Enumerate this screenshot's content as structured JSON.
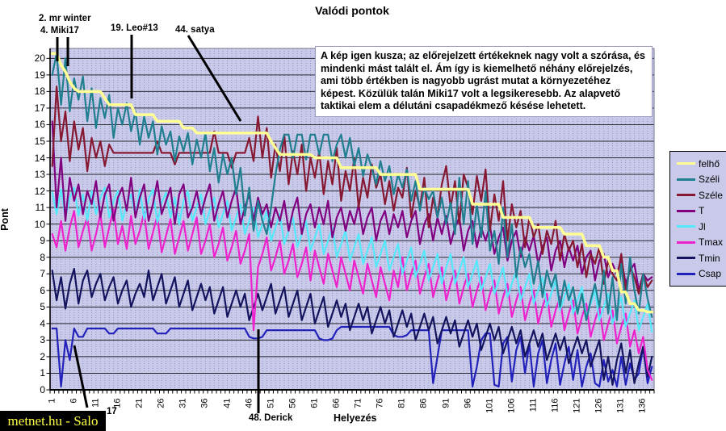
{
  "title": "Valódi pontok",
  "watermark": "metnet.hu - Salo",
  "annotation_box": {
    "text": "A kép igen kusza; az előrejelzett értékeknek nagy volt a szórása, és mindenki mást talált el. Ám így is kiemelhető néhány előrejelzés, ami több értékben is nagyobb ugrást mutat a környezetéhez képest. Közülük talán Miki17 volt a legsikeresebb. Az alapvető taktikai elem a délutáni csapadékmező késése lehetett."
  },
  "callouts": [
    {
      "label": "2. mr winter"
    },
    {
      "label": "4. Miki17"
    },
    {
      "label": "19. Leo#13"
    },
    {
      "label": "44. satya"
    },
    {
      "label": "48. Derick"
    },
    {
      "label": "17"
    }
  ],
  "chart_data": {
    "type": "line",
    "title": "Valódi pontok",
    "xlabel": "Helyezés",
    "ylabel": "Pont",
    "x_range": [
      1,
      138
    ],
    "ylim": [
      0,
      20.6
    ],
    "y_ticks": [
      0,
      1,
      2,
      3,
      4,
      5,
      6,
      7,
      8,
      9,
      10,
      11,
      12,
      13,
      14,
      15,
      16,
      17,
      18,
      19,
      20
    ],
    "x_tick_labels": [
      1,
      6,
      11,
      16,
      21,
      26,
      31,
      36,
      41,
      46,
      51,
      56,
      61,
      66,
      71,
      76,
      81,
      86,
      91,
      96,
      101,
      106,
      111,
      116,
      121,
      126,
      131,
      136
    ],
    "grid": "horizontal solid every 1 pt, vertical dashed every rank",
    "legend_position": "right",
    "plot_bg": "#c9c9ea",
    "series": [
      {
        "name": "felhő",
        "color": "#ffff94",
        "width": 3.5,
        "values": [
          20.3,
          20.3,
          19.6,
          19.2,
          18.6,
          18.2,
          18,
          18,
          18,
          18,
          18,
          18,
          17.6,
          17.2,
          17.2,
          17.2,
          17.2,
          17.2,
          17.2,
          16.6,
          16.6,
          16.6,
          16.6,
          16.6,
          16.2,
          16.2,
          16.2,
          16.2,
          16.2,
          16.2,
          15.8,
          15.8,
          15.8,
          15.5,
          15.5,
          15.5,
          15.5,
          15.5,
          15.5,
          15.5,
          15.5,
          15.5,
          15.5,
          15.5,
          15.5,
          15.5,
          15.5,
          15.5,
          15.5,
          15.5,
          15,
          14.6,
          14.2,
          14.2,
          14.2,
          14.2,
          14.2,
          14.2,
          14.2,
          14.2,
          14,
          14,
          14,
          14,
          14,
          14,
          13.4,
          13.4,
          13.4,
          13.4,
          13.4,
          13.4,
          13.4,
          13.4,
          13.4,
          13,
          13,
          13,
          13,
          13,
          13,
          13,
          13,
          13,
          12.1,
          12.1,
          12.1,
          12.1,
          12.1,
          12.1,
          12.1,
          12.1,
          12.1,
          12.1,
          12.1,
          12.1,
          11.2,
          11.2,
          11.2,
          11.2,
          11.2,
          11.2,
          11.2,
          10.4,
          10.4,
          10.4,
          10.4,
          10.4,
          10.4,
          10.4,
          9.8,
          9.8,
          9.8,
          9.8,
          9.8,
          9.8,
          9.8,
          9.4,
          9.4,
          9.4,
          9.4,
          9.4,
          8.7,
          8.7,
          8.7,
          8.7,
          8,
          8,
          7.2,
          7.2,
          5.9,
          5.9,
          5.2,
          5.2,
          4.8,
          4.8,
          4.7,
          4.7
        ]
      },
      {
        "name": "Széli",
        "color": "#1f7f8f",
        "width": 2.2,
        "values": [
          19,
          20.3,
          17.2,
          20,
          16.8,
          18.8,
          17.5,
          18.9,
          16.2,
          18.2,
          15.8,
          17.6,
          16.4,
          17.8,
          15.2,
          17,
          16,
          17.3,
          15.6,
          16.8,
          14.8,
          16.5,
          15.2,
          16.2,
          14.2,
          15.9,
          14.8,
          15.6,
          13.8,
          15.3,
          14.4,
          15.5,
          13.6,
          15.1,
          14,
          15.5,
          13.2,
          14.6,
          12.5,
          14.2,
          13,
          14,
          11.8,
          13.4,
          10.5,
          12.2,
          9.6,
          11.4,
          10.2,
          9.4,
          11,
          13,
          14.5,
          15.4,
          15.4,
          14,
          15.4,
          15.4,
          13.9,
          15.4,
          15.4,
          14.2,
          15.4,
          15.4,
          13.8,
          14.8,
          15.4,
          14,
          15.2,
          13.5,
          14.6,
          12.9,
          14.2,
          13.4,
          12.4,
          13.8,
          12.6,
          13.5,
          11.8,
          13,
          12.2,
          13.3,
          11.4,
          12.6,
          10.8,
          12.2,
          11.5,
          12,
          10.4,
          11.6,
          10,
          11.3,
          9.4,
          12.8,
          10,
          12.6,
          8.8,
          11.2,
          9.2,
          12,
          8.4,
          9.6,
          7.6,
          11,
          8,
          10,
          6.8,
          8.6,
          7.4,
          8.2,
          6.4,
          7.8,
          5.6,
          7.2,
          6.2,
          7,
          5,
          6.6,
          5.4,
          6.2,
          4.6,
          5.8,
          4.2,
          5.4,
          6.4,
          5,
          7.2,
          4.6,
          6.8,
          4.2,
          7.6,
          5.2,
          8,
          6,
          4.6,
          7,
          5.5,
          4.4
        ]
      },
      {
        "name": "Széle",
        "color": "#861832",
        "width": 2.2,
        "values": [
          13.5,
          18.3,
          15,
          16.8,
          13.8,
          16.2,
          14.5,
          15.8,
          13.2,
          15.2,
          14,
          15,
          13.5,
          14.8,
          14.3,
          14.3,
          14.3,
          14.3,
          14.3,
          14.3,
          14.3,
          14.3,
          14.3,
          14.3,
          15,
          14.3,
          14.3,
          14.3,
          13.6,
          14.3,
          14.3,
          14.3,
          14.3,
          14.3,
          14.3,
          14.3,
          14.3,
          15.6,
          14.3,
          14.3,
          14.3,
          13.4,
          14.3,
          14.3,
          14.3,
          15.2,
          13.8,
          16.5,
          14,
          15.8,
          12.8,
          14.8,
          13.2,
          15.4,
          12.4,
          14.4,
          13,
          14.8,
          12,
          14,
          12.8,
          14.4,
          11.8,
          13.8,
          12.4,
          14.6,
          11.4,
          13.2,
          12,
          14,
          11,
          12.8,
          11.6,
          13.6,
          12.2,
          13,
          11.2,
          12.6,
          10.8,
          12.2,
          11.6,
          13.4,
          10.4,
          12,
          11,
          12.8,
          9.8,
          11.6,
          10.4,
          12.4,
          13.5,
          11,
          12.6,
          10,
          13,
          12.2,
          10.6,
          12.9,
          11.4,
          13.3,
          9.6,
          11.8,
          10.2,
          12.6,
          9,
          11.2,
          9.8,
          10.8,
          8.6,
          10.4,
          9.2,
          10,
          8.2,
          9.6,
          8.8,
          10.2,
          7.8,
          9.4,
          8.4,
          9,
          7.4,
          8.8,
          6.8,
          8.2,
          7.6,
          8.6,
          6.4,
          7.8,
          7,
          6.6,
          8.2,
          6,
          7.4,
          6.8,
          5.8,
          7,
          6.2,
          6.6
        ]
      },
      {
        "name": "T",
        "color": "#800080",
        "width": 2.2,
        "values": [
          16.2,
          11,
          14,
          10.2,
          12.8,
          11.4,
          12.4,
          10.6,
          12,
          11.2,
          12.6,
          10.4,
          11.8,
          12.4,
          10.2,
          11.6,
          12.2,
          10.8,
          12.8,
          10.4,
          11.6,
          12.4,
          10.2,
          11.2,
          12.6,
          10.6,
          11.4,
          12.2,
          10,
          11.8,
          12.4,
          10.4,
          11,
          12,
          10.6,
          11.6,
          12.4,
          10.2,
          11.2,
          12,
          10.4,
          11.4,
          12.2,
          10,
          11,
          11.8,
          10.2,
          11.6,
          10.6,
          11.2,
          9.8,
          11,
          10.2,
          11.4,
          9.6,
          10.8,
          11.6,
          9.4,
          10.6,
          11.2,
          9.8,
          11,
          10,
          11.4,
          9.2,
          10.4,
          11,
          9.6,
          10.8,
          10,
          11.2,
          9.4,
          10.4,
          11,
          9,
          10.2,
          10.8,
          9.4,
          10.6,
          9.8,
          10.8,
          9.2,
          10.2,
          10.8,
          8.8,
          10,
          10.6,
          9,
          10.4,
          9.4,
          10.5,
          8.8,
          9.8,
          10.4,
          8.4,
          9.6,
          10.2,
          8.6,
          9.8,
          9,
          9.9,
          8.2,
          9.2,
          9.8,
          7.8,
          9,
          9.6,
          8,
          9.2,
          8.4,
          9.3,
          7.6,
          8.6,
          9.2,
          7.2,
          8.4,
          9,
          7.4,
          8.6,
          7.8,
          8.7,
          7,
          8,
          8.4,
          6.6,
          7.8,
          8.2,
          6.8,
          7.6,
          7,
          7.9,
          6.4,
          7.2,
          7.6,
          6,
          7,
          6.6,
          6.8
        ]
      },
      {
        "name": "Jl",
        "color": "#55e8fa",
        "width": 2.2,
        "values": [
          11.9,
          10.6,
          12.1,
          10.4,
          11.6,
          12.2,
          10.5,
          11.8,
          10.2,
          12,
          10.6,
          11.6,
          12.2,
          10.4,
          11.4,
          12,
          10.2,
          11.2,
          11.8,
          10.5,
          12.1,
          10.3,
          11.5,
          12.1,
          10.1,
          11.3,
          11.9,
          10.4,
          11.6,
          10,
          11.4,
          12,
          10.2,
          11,
          11.8,
          10,
          10.8,
          11.6,
          9.8,
          10.6,
          11.4,
          9.6,
          10.4,
          11.2,
          9.4,
          10.2,
          11,
          9.2,
          10,
          10.8,
          9,
          9.8,
          10.6,
          8.8,
          9.6,
          10.4,
          8.6,
          9.4,
          10.2,
          8.4,
          9.2,
          10,
          8.2,
          9,
          9.8,
          8,
          8.8,
          9.6,
          7.8,
          8.6,
          9.4,
          7.6,
          8.4,
          9.2,
          7.4,
          8.2,
          9,
          7.2,
          8,
          8.8,
          7,
          7.8,
          8.6,
          6.8,
          7.6,
          8.4,
          6.6,
          7.4,
          8.2,
          6.4,
          7.4,
          8.2,
          6.4,
          7.2,
          8,
          6.2,
          7,
          7.8,
          6,
          6.8,
          7.6,
          5.8,
          6.6,
          7.4,
          5.6,
          6.4,
          7.2,
          5.4,
          6.2,
          7,
          5.2,
          6,
          6.8,
          5,
          5.8,
          6.6,
          4.8,
          5.6,
          6.4,
          4.6,
          5.4,
          6.2,
          4.4,
          5.2,
          6,
          4.2,
          5,
          5.8,
          4,
          4.8,
          5.6,
          3.8,
          4.6,
          5.4,
          3.6,
          4.4,
          5.2,
          3.5
        ]
      },
      {
        "name": "Tmax",
        "color": "#ee22cc",
        "width": 2.2,
        "values": [
          9.4,
          8.6,
          10.2,
          8.4,
          9.8,
          10.8,
          8.6,
          9.6,
          10.4,
          8.4,
          9.4,
          10.6,
          8.6,
          9.8,
          10.9,
          8.8,
          9.9,
          8.5,
          10.5,
          8.8,
          9.6,
          10.7,
          8.5,
          9.5,
          10.5,
          8.3,
          9.3,
          10.3,
          8.2,
          9.2,
          10.2,
          8.4,
          9.4,
          10.4,
          8.2,
          9,
          10,
          8,
          8.8,
          9.8,
          7.8,
          8.6,
          9.6,
          7.6,
          8.4,
          9.4,
          3.6,
          7.4,
          8.2,
          9.2,
          7.2,
          8,
          9,
          7,
          7.8,
          8.8,
          6.8,
          7.6,
          8.6,
          6.6,
          8.4,
          7.4,
          6.4,
          8.2,
          7.2,
          6.2,
          8,
          7,
          6,
          7.8,
          6.8,
          5.8,
          7.6,
          6.6,
          5.6,
          7.4,
          6.4,
          5.4,
          7.2,
          6.2,
          8,
          6,
          7,
          7.8,
          5.8,
          6.8,
          7.6,
          5.6,
          6.6,
          7.4,
          5.4,
          6.4,
          7.2,
          5.2,
          6.2,
          7,
          5,
          6,
          6.8,
          4.8,
          5.8,
          6.6,
          4.6,
          5.6,
          6.4,
          4.4,
          5.4,
          6.2,
          4.2,
          5.2,
          6,
          4,
          5,
          5.8,
          3.8,
          4.8,
          5.6,
          3.6,
          4.6,
          5.4,
          3.4,
          4.4,
          5.2,
          3.2,
          4.2,
          5,
          3,
          4,
          4.8,
          2.8,
          3.8,
          4.6,
          2.6,
          3.6,
          2.2,
          3.2,
          1.2,
          0.6
        ]
      },
      {
        "name": "Tmin",
        "color": "#14145e",
        "width": 2.2,
        "values": [
          7.2,
          5.4,
          6.8,
          4.9,
          6.4,
          7.3,
          5.2,
          6.6,
          7.2,
          5.6,
          6.4,
          7,
          5.4,
          6.2,
          6.8,
          5.2,
          6,
          6.6,
          5,
          5.8,
          6.4,
          5.6,
          7.2,
          5.4,
          6.2,
          7,
          5.2,
          6,
          6.8,
          5,
          5.8,
          6.6,
          4.8,
          5.6,
          6.4,
          5.4,
          6.2,
          4.6,
          5.4,
          6.2,
          4.4,
          5.2,
          6,
          5,
          5.8,
          4.2,
          5,
          5.8,
          4.8,
          5.6,
          6.4,
          4.6,
          5.4,
          6.2,
          4.4,
          5.2,
          6,
          4.2,
          5,
          5.8,
          4,
          4.8,
          5.6,
          3.8,
          4.6,
          5.4,
          4.4,
          5.2,
          3.6,
          4.4,
          5.2,
          4.2,
          5,
          3.4,
          4.2,
          5,
          4,
          4.8,
          3.2,
          4,
          4.8,
          3.8,
          4.6,
          3,
          3.8,
          4.6,
          3.6,
          4.4,
          2.8,
          3.6,
          4.4,
          3.4,
          4.2,
          2.6,
          3.4,
          4.2,
          3.2,
          4,
          2.4,
          3.2,
          4,
          3,
          3.8,
          2.2,
          3,
          3.8,
          2.8,
          3.6,
          2,
          2.8,
          3.6,
          2.6,
          3.4,
          1.8,
          2.6,
          3.4,
          2.4,
          3.2,
          1.6,
          2.4,
          3.2,
          2.2,
          3,
          1.4,
          2.2,
          3,
          0.6,
          2,
          0.3,
          1.8,
          2.8,
          1,
          2.4,
          0.4,
          1.6,
          2.6,
          0.8,
          2
        ]
      },
      {
        "name": "Csap",
        "color": "#2222bb",
        "width": 2.2,
        "values": [
          3.7,
          3.7,
          0.2,
          3,
          1.8,
          3.7,
          3.2,
          3.2,
          3.7,
          3.7,
          3.7,
          3.7,
          3.7,
          3.4,
          3.4,
          3.7,
          3.7,
          3.7,
          3.7,
          3.7,
          3.7,
          3.7,
          3.7,
          3.7,
          3.4,
          3.4,
          3.4,
          3.7,
          3.7,
          3.7,
          3.7,
          3.7,
          3.7,
          3.7,
          3.7,
          3.7,
          3.7,
          3.7,
          3.7,
          3.7,
          3.7,
          3.7,
          3.7,
          3.7,
          3.7,
          3.2,
          3.1,
          3.1,
          3.2,
          3.6,
          3.6,
          3.6,
          3.6,
          3.6,
          3.6,
          3.6,
          3.6,
          3.6,
          3.6,
          3.6,
          3.6,
          3.1,
          3,
          3,
          3.1,
          3.6,
          3.8,
          3.8,
          3.8,
          3.8,
          3.8,
          3.8,
          3.8,
          3.8,
          3.8,
          3.8,
          3.8,
          3.8,
          3.3,
          3.2,
          3.2,
          3.3,
          3.6,
          3.6,
          3.6,
          3.6,
          3.6,
          0.4,
          2,
          3.6,
          3.6,
          3.6,
          3.6,
          3.6,
          3.6,
          3.6,
          0.2,
          1.4,
          3,
          3.4,
          3.4,
          0.3,
          0.2,
          2.8,
          3.2,
          0.5,
          2.4,
          3.2,
          1,
          2.8,
          0.2,
          2.2,
          3,
          0.4,
          1.8,
          2.8,
          0.3,
          1.6,
          2.6,
          0.6,
          2.4,
          0.2,
          1.4,
          2.2,
          0.4,
          0.2,
          1.8,
          0.5,
          1.2,
          0.2,
          2,
          0.3,
          1.6,
          0.6,
          1,
          2.6,
          0.4,
          1.4
        ]
      }
    ]
  }
}
